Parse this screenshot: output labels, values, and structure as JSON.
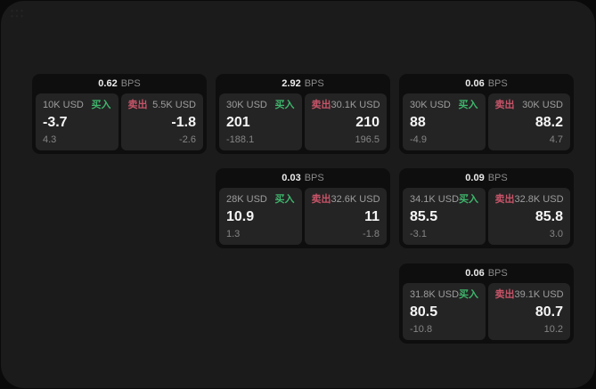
{
  "labels": {
    "bps_unit": "BPS",
    "buy": "买入",
    "sell": "卖出"
  },
  "colors": {
    "buy_green": "#3fb56c",
    "sell_red": "#c65468",
    "surface": "#1b1b1b",
    "card_bg": "#0e0e0e",
    "panel_bg": "#242424"
  },
  "cards": [
    {
      "col": 1,
      "row": 1,
      "bps": "0.62",
      "buy": {
        "amount": "10K USD",
        "value": "-3.7",
        "delta": "4.3"
      },
      "sell": {
        "amount": "5.5K USD",
        "value": "-1.8",
        "delta": "-2.6"
      }
    },
    {
      "col": 2,
      "row": 1,
      "bps": "2.92",
      "buy": {
        "amount": "30K USD",
        "value": "201",
        "delta": "-188.1"
      },
      "sell": {
        "amount": "30.1K USD",
        "value": "210",
        "delta": "196.5"
      }
    },
    {
      "col": 3,
      "row": 1,
      "bps": "0.06",
      "buy": {
        "amount": "30K USD",
        "value": "88",
        "delta": "-4.9"
      },
      "sell": {
        "amount": "30K USD",
        "value": "88.2",
        "delta": "4.7"
      }
    },
    {
      "col": 2,
      "row": 2,
      "bps": "0.03",
      "buy": {
        "amount": "28K USD",
        "value": "10.9",
        "delta": "1.3"
      },
      "sell": {
        "amount": "32.6K USD",
        "value": "11",
        "delta": "-1.8"
      }
    },
    {
      "col": 3,
      "row": 2,
      "bps": "0.09",
      "buy": {
        "amount": "34.1K USD",
        "value": "85.5",
        "delta": "-3.1"
      },
      "sell": {
        "amount": "32.8K USD",
        "value": "85.8",
        "delta": "3.0"
      }
    },
    {
      "col": 3,
      "row": 3,
      "bps": "0.06",
      "buy": {
        "amount": "31.8K USD",
        "value": "80.5",
        "delta": "-10.8"
      },
      "sell": {
        "amount": "39.1K USD",
        "value": "80.7",
        "delta": "10.2"
      }
    }
  ]
}
